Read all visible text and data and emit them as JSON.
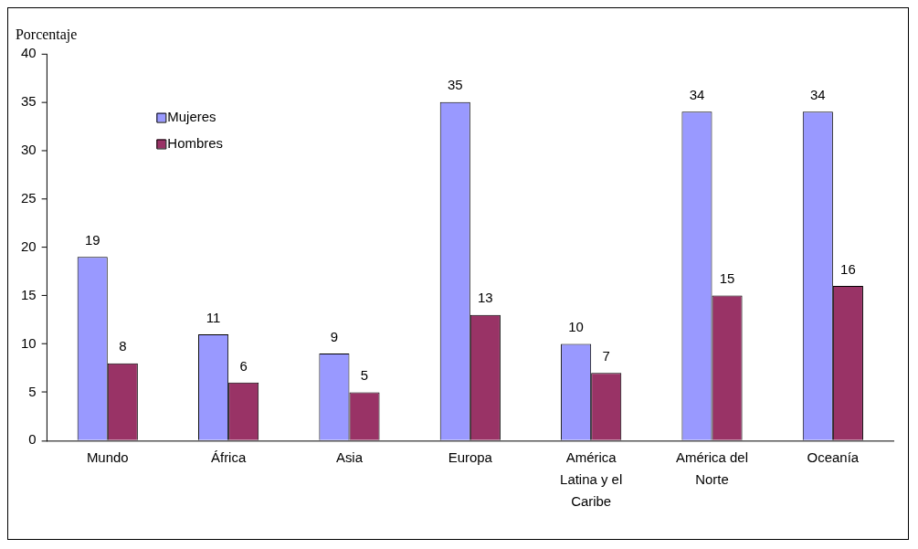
{
  "chart_data": {
    "type": "bar",
    "ylabel": "Porcentaje",
    "categories": [
      "Mundo",
      "África",
      "Asia",
      "Europa",
      "América Latina y el Caribe",
      "América del Norte",
      "Oceanía"
    ],
    "series": [
      {
        "name": "Mujeres",
        "color": "#9999ff",
        "values": [
          19,
          11,
          9,
          35,
          10,
          34,
          34
        ]
      },
      {
        "name": "Hombres",
        "color": "#993366",
        "values": [
          8,
          6,
          5,
          13,
          7,
          15,
          16
        ]
      }
    ],
    "ylim": [
      0,
      40
    ],
    "yticks": [
      0,
      5,
      10,
      15,
      20,
      25,
      30,
      35,
      40
    ],
    "grid": false,
    "legend": "top left",
    "data_labels": true
  }
}
